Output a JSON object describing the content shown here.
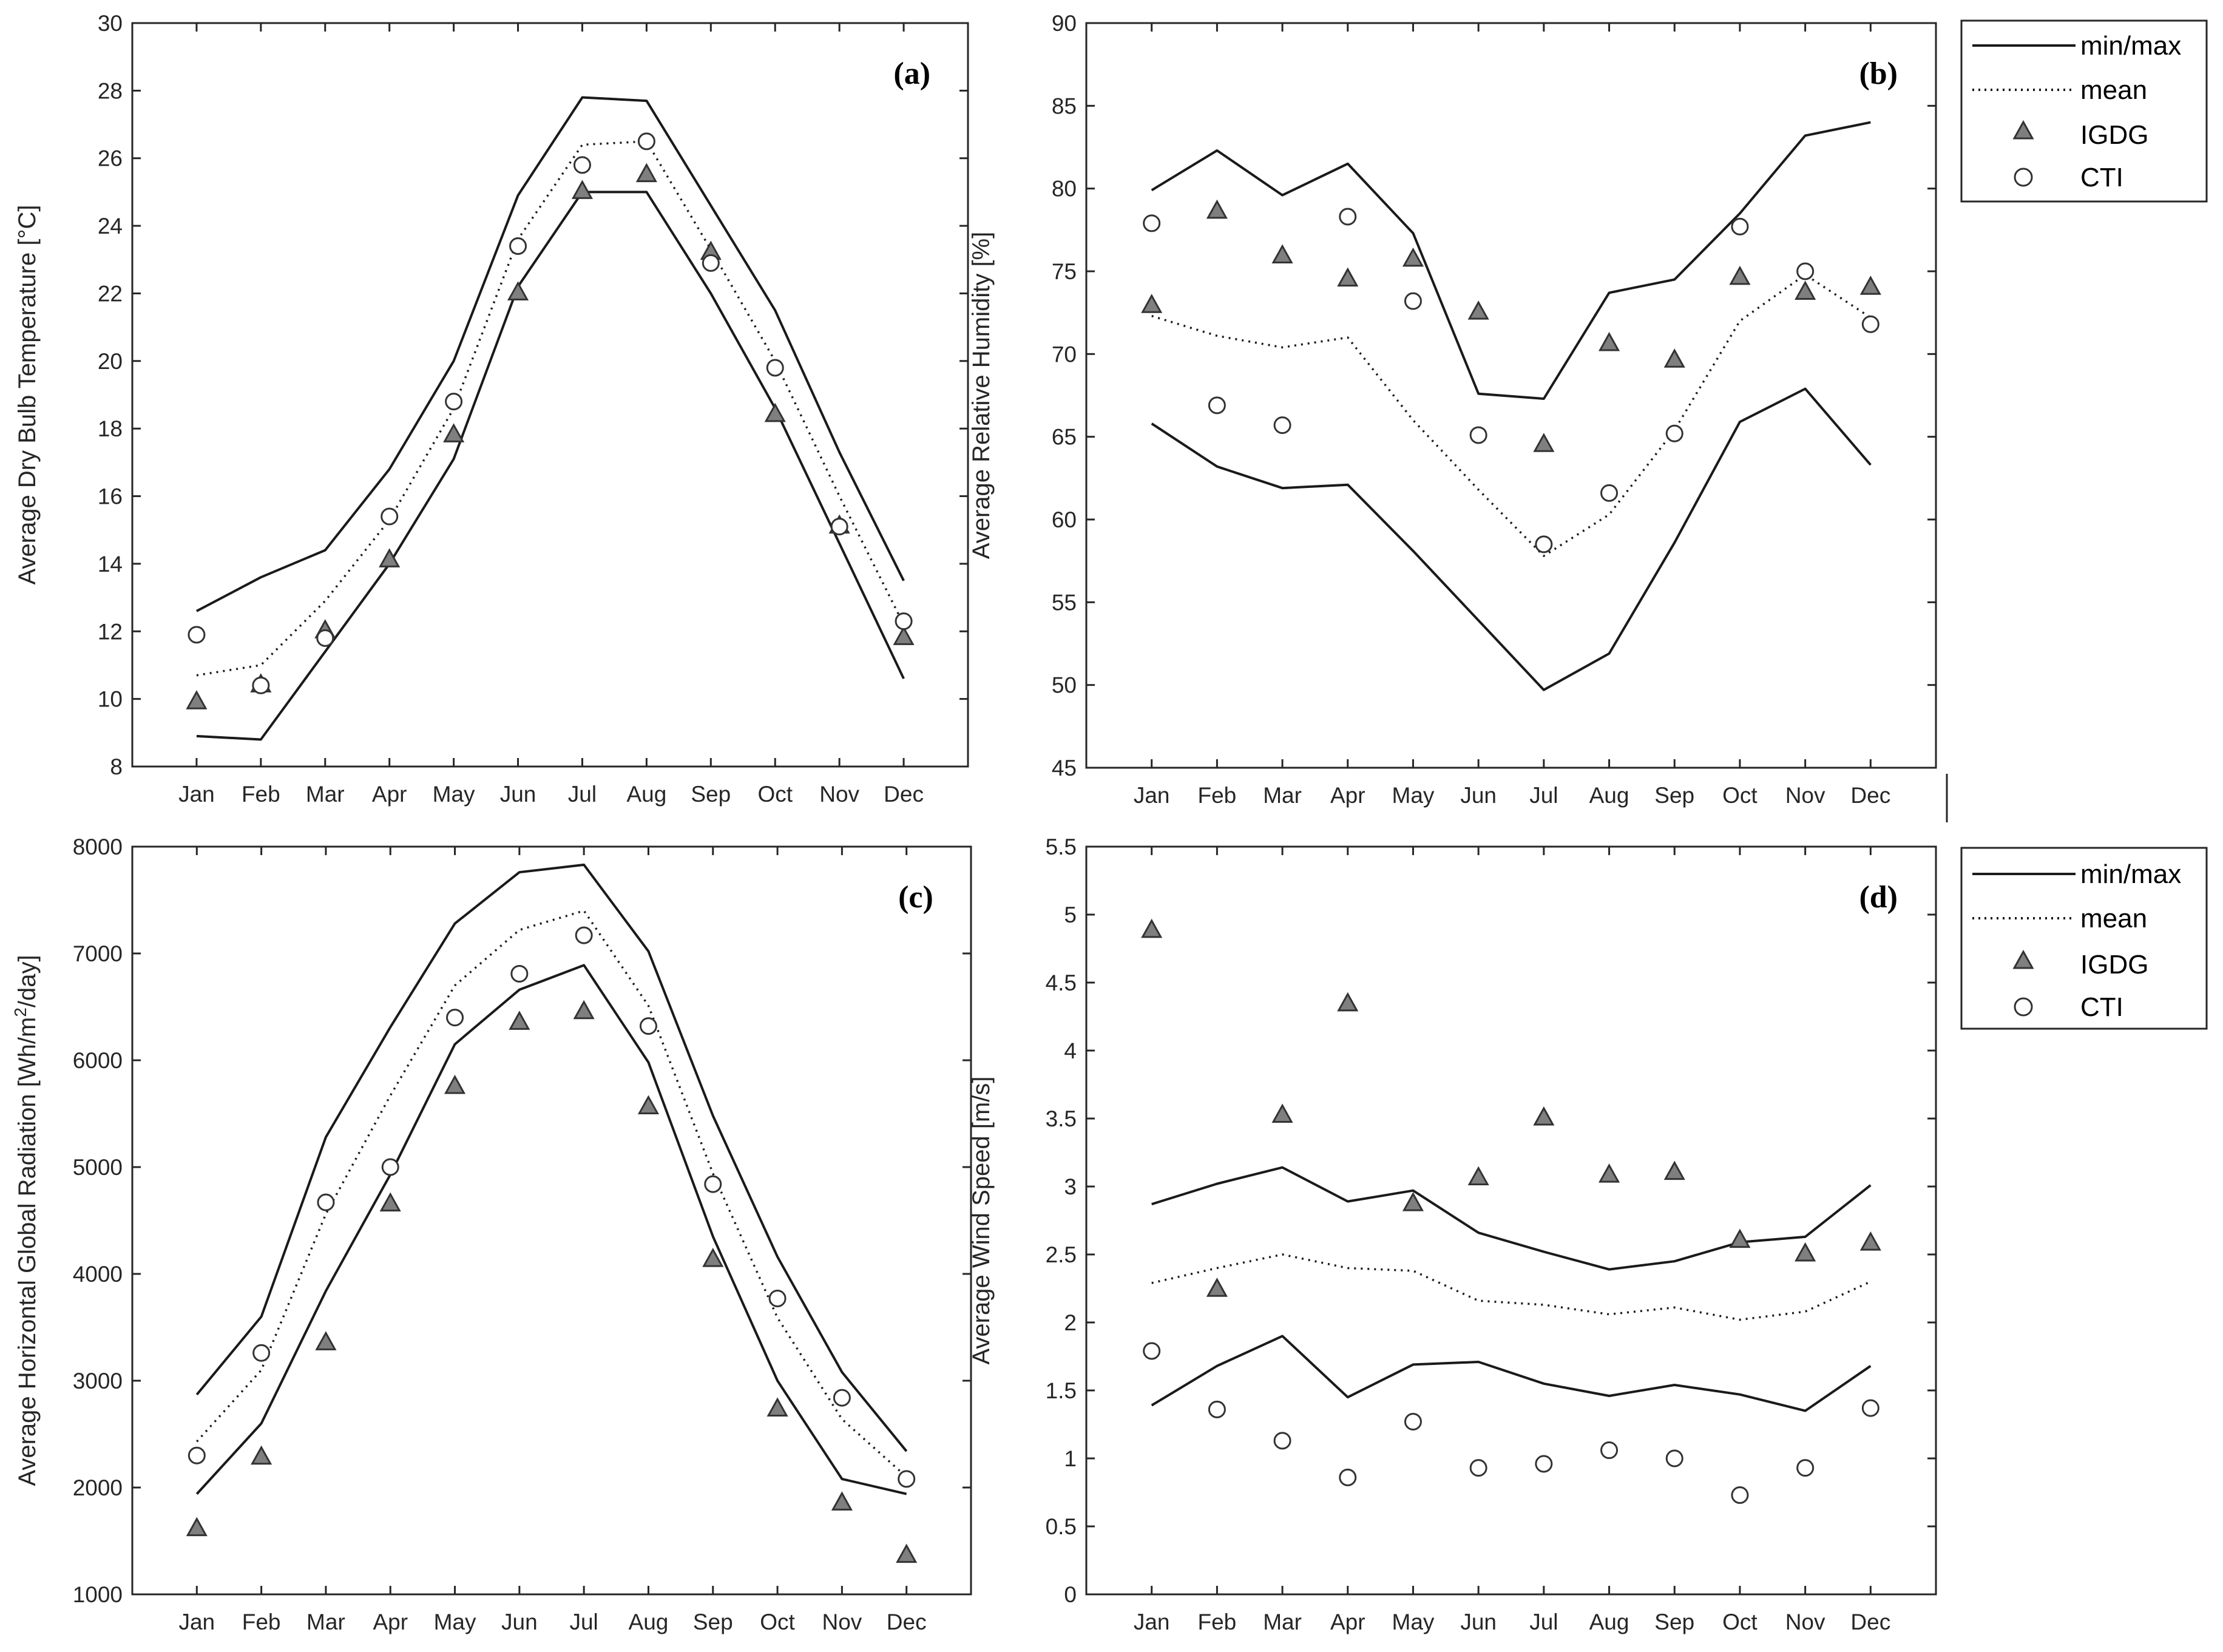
{
  "colors": {
    "line": "#1a1a1a",
    "axis": "#262626",
    "marker_fill": "#7f7f7f",
    "marker_edge": "#333333",
    "background": "#ffffff"
  },
  "chart_data": [
    {
      "id": "a",
      "type": "line",
      "panel_label": "(a)",
      "ylabel": "Average Dry Bulb Temperature [°C]",
      "categories": [
        "Jan",
        "Feb",
        "Mar",
        "Apr",
        "May",
        "Jun",
        "Jul",
        "Aug",
        "Sep",
        "Oct",
        "Nov",
        "Dec"
      ],
      "ylim": [
        8,
        30
      ],
      "yticks": [
        8,
        10,
        12,
        14,
        16,
        18,
        20,
        22,
        24,
        26,
        28,
        30
      ],
      "series": [
        {
          "name": "max",
          "style": "solid",
          "values": [
            12.6,
            13.6,
            14.4,
            16.8,
            20.0,
            24.9,
            27.8,
            27.7,
            24.6,
            21.5,
            17.3,
            13.5
          ]
        },
        {
          "name": "min",
          "style": "solid",
          "values": [
            8.9,
            8.8,
            11.4,
            14.0,
            17.1,
            22.2,
            25.0,
            25.0,
            22.0,
            18.6,
            14.6,
            10.6
          ]
        },
        {
          "name": "mean",
          "style": "dotted",
          "values": [
            10.7,
            11.0,
            12.9,
            15.3,
            18.6,
            23.6,
            26.4,
            26.5,
            23.3,
            20.0,
            16.0,
            12.2
          ]
        },
        {
          "name": "IGDG",
          "style": "triangle",
          "values": [
            9.9,
            10.4,
            12.0,
            14.1,
            17.8,
            22.0,
            25.0,
            25.5,
            23.2,
            18.4,
            15.1,
            11.8
          ]
        },
        {
          "name": "CTI",
          "style": "circle",
          "values": [
            11.9,
            10.4,
            11.8,
            15.4,
            18.8,
            23.4,
            25.8,
            26.5,
            22.9,
            19.8,
            15.1,
            12.3
          ]
        }
      ]
    },
    {
      "id": "b",
      "type": "line",
      "panel_label": "(b)",
      "ylabel": "Average Relative Humidity [%]",
      "categories": [
        "Jan",
        "Feb",
        "Mar",
        "Apr",
        "May",
        "Jun",
        "Jul",
        "Aug",
        "Sep",
        "Oct",
        "Nov",
        "Dec"
      ],
      "ylim": [
        45,
        90
      ],
      "yticks": [
        45,
        50,
        55,
        60,
        65,
        70,
        75,
        80,
        85,
        90
      ],
      "series": [
        {
          "name": "max",
          "style": "solid",
          "values": [
            79.9,
            82.3,
            79.6,
            81.5,
            77.3,
            67.6,
            67.3,
            73.7,
            74.5,
            78.5,
            83.2,
            84.0
          ]
        },
        {
          "name": "min",
          "style": "solid",
          "values": [
            65.8,
            63.2,
            61.9,
            62.1,
            58.1,
            53.9,
            49.7,
            51.9,
            58.6,
            65.9,
            67.9,
            63.3
          ]
        },
        {
          "name": "mean",
          "style": "dotted",
          "values": [
            72.3,
            71.1,
            70.4,
            71.0,
            66.0,
            61.8,
            57.8,
            60.3,
            65.4,
            72.0,
            74.8,
            72.2
          ]
        },
        {
          "name": "IGDG",
          "style": "triangle",
          "values": [
            72.9,
            78.6,
            75.9,
            74.5,
            75.7,
            72.5,
            64.5,
            70.6,
            69.6,
            74.6,
            73.7,
            74.0
          ]
        },
        {
          "name": "CTI",
          "style": "circle",
          "values": [
            77.9,
            66.9,
            65.7,
            78.3,
            73.2,
            65.1,
            58.5,
            61.6,
            65.2,
            77.7,
            75.0,
            71.8
          ]
        }
      ],
      "legend": {
        "position": "outside-top-right",
        "items": [
          "min/max",
          "mean",
          "IGDG",
          "CTI"
        ]
      }
    },
    {
      "id": "c",
      "type": "line",
      "panel_label": "(c)",
      "ylabel_prefix": "Average Horizontal Global Radiation [Wh/m",
      "ylabel_sup": "2",
      "ylabel_suffix": "/day]",
      "categories": [
        "Jan",
        "Feb",
        "Mar",
        "Apr",
        "May",
        "Jun",
        "Jul",
        "Aug",
        "Sep",
        "Oct",
        "Nov",
        "Dec"
      ],
      "ylim": [
        1000,
        8000
      ],
      "yticks": [
        1000,
        2000,
        3000,
        4000,
        5000,
        6000,
        7000,
        8000
      ],
      "series": [
        {
          "name": "max",
          "style": "solid",
          "values": [
            2870,
            3600,
            5280,
            6310,
            7280,
            7760,
            7830,
            7020,
            5480,
            4160,
            3080,
            2340
          ]
        },
        {
          "name": "min",
          "style": "solid",
          "values": [
            1940,
            2600,
            3840,
            4930,
            6150,
            6660,
            6890,
            5980,
            4350,
            3000,
            2080,
            1940
          ]
        },
        {
          "name": "mean",
          "style": "dotted",
          "values": [
            2430,
            3100,
            4560,
            5670,
            6700,
            7220,
            7400,
            6510,
            4940,
            3590,
            2640,
            2100
          ]
        },
        {
          "name": "IGDG",
          "style": "triangle",
          "values": [
            1610,
            2280,
            3350,
            4650,
            5750,
            6350,
            6450,
            5560,
            4130,
            2730,
            1850,
            1360
          ]
        },
        {
          "name": "CTI",
          "style": "circle",
          "values": [
            2300,
            3260,
            4670,
            5000,
            6400,
            6810,
            7170,
            6320,
            4840,
            3770,
            2840,
            2080
          ]
        }
      ]
    },
    {
      "id": "d",
      "type": "line",
      "panel_label": "(d)",
      "ylabel": "Average Wind Speed [m/s]",
      "categories": [
        "Jan",
        "Feb",
        "Mar",
        "Apr",
        "May",
        "Jun",
        "Jul",
        "Aug",
        "Sep",
        "Oct",
        "Nov",
        "Dec"
      ],
      "ylim": [
        0,
        5.5
      ],
      "yticks": [
        0,
        0.5,
        1,
        1.5,
        2,
        2.5,
        3,
        3.5,
        4,
        4.5,
        5,
        5.5
      ],
      "series": [
        {
          "name": "max",
          "style": "solid",
          "values": [
            2.87,
            3.02,
            3.14,
            2.89,
            2.97,
            2.66,
            2.52,
            2.39,
            2.45,
            2.59,
            2.63,
            3.01
          ]
        },
        {
          "name": "min",
          "style": "solid",
          "values": [
            1.39,
            1.68,
            1.9,
            1.45,
            1.69,
            1.71,
            1.55,
            1.46,
            1.54,
            1.47,
            1.35,
            1.68
          ]
        },
        {
          "name": "mean",
          "style": "dotted",
          "values": [
            2.29,
            2.4,
            2.5,
            2.4,
            2.38,
            2.16,
            2.13,
            2.06,
            2.11,
            2.02,
            2.08,
            2.3
          ]
        },
        {
          "name": "IGDG",
          "style": "triangle",
          "values": [
            4.88,
            2.24,
            3.52,
            4.34,
            2.87,
            3.06,
            3.5,
            3.08,
            3.1,
            2.6,
            2.5,
            2.58
          ]
        },
        {
          "name": "CTI",
          "style": "circle",
          "values": [
            1.79,
            1.36,
            1.13,
            0.86,
            1.27,
            0.93,
            0.96,
            1.06,
            1.0,
            0.73,
            0.93,
            1.37
          ]
        }
      ],
      "legend": {
        "position": "inside-top-right",
        "items": [
          "min/max",
          "mean",
          "IGDG",
          "CTI"
        ]
      }
    }
  ]
}
